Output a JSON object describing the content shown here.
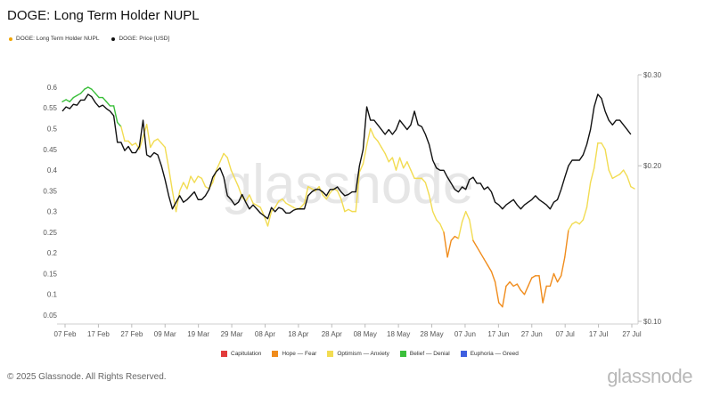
{
  "title": "DOGE: Long Term Holder NUPL",
  "legend_top": [
    {
      "label": "DOGE: Long Term Holder NUPL",
      "color": "#f0a500"
    },
    {
      "label": "DOGE: Price [USD]",
      "color": "#111111"
    }
  ],
  "legend_bottom": [
    {
      "label": "Capitulation",
      "color": "#e23b3b"
    },
    {
      "label": "Hope — Fear",
      "color": "#f08c1c"
    },
    {
      "label": "Optimism — Anxiety",
      "color": "#f2dc52"
    },
    {
      "label": "Belief — Denial",
      "color": "#3bbf3b"
    },
    {
      "label": "Euphoria — Greed",
      "color": "#3f5fe0"
    }
  ],
  "watermark": "glassnode",
  "footer": "© 2025 Glassnode. All Rights Reserved.",
  "brand": "glassnode",
  "chart_data": {
    "type": "line",
    "x_tick_labels": [
      "07 Feb",
      "17 Feb",
      "27 Feb",
      "09 Mar",
      "19 Mar",
      "29 Mar",
      "08 Apr",
      "18 Apr",
      "28 Apr",
      "08 May",
      "18 May",
      "28 May",
      "07 Jun",
      "17 Jun",
      "27 Jun",
      "07 Jul",
      "17 Jul",
      "27 Jul"
    ],
    "y_left_ticks": [
      "0.6",
      "0.55",
      "0.5",
      "0.45",
      "0.4",
      "0.35",
      "0.3",
      "0.25",
      "0.2",
      "0.15",
      "0.1",
      "0.05"
    ],
    "y_left_values": [
      0.6,
      0.55,
      0.5,
      0.45,
      0.4,
      0.35,
      0.3,
      0.25,
      0.2,
      0.15,
      0.1,
      0.05
    ],
    "ylim_left": [
      0.035,
      0.63
    ],
    "y_right_ticks": [
      "$0.30",
      "$0.20",
      "$0.10"
    ],
    "y_right_values": [
      0.3,
      0.2,
      0.1
    ],
    "ylim_right": [
      0.1,
      0.3
    ],
    "y_right_scale": "log",
    "nupl_zones": [
      {
        "name": "Capitulation",
        "max": 0,
        "color": "#e23b3b"
      },
      {
        "name": "Hope — Fear",
        "max": 0.25,
        "color": "#f08c1c"
      },
      {
        "name": "Optimism — Anxiety",
        "max": 0.5,
        "color": "#f2dc52"
      },
      {
        "name": "Belief — Denial",
        "max": 0.75,
        "color": "#3bbf3b"
      },
      {
        "name": "Euphoria — Greed",
        "max": 1,
        "color": "#3f5fe0"
      }
    ],
    "series": [
      {
        "name": "DOGE: Long Term Holder NUPL",
        "axis": "left",
        "values": [
          0.565,
          0.57,
          0.565,
          0.575,
          0.58,
          0.585,
          0.595,
          0.6,
          0.595,
          0.585,
          0.575,
          0.575,
          0.565,
          0.555,
          0.555,
          0.515,
          0.505,
          0.47,
          0.47,
          0.46,
          0.465,
          0.45,
          0.48,
          0.51,
          0.455,
          0.47,
          0.475,
          0.465,
          0.455,
          0.405,
          0.35,
          0.3,
          0.35,
          0.37,
          0.355,
          0.385,
          0.37,
          0.385,
          0.38,
          0.36,
          0.355,
          0.37,
          0.4,
          0.42,
          0.44,
          0.43,
          0.4,
          0.38,
          0.36,
          0.335,
          0.325,
          0.34,
          0.32,
          0.315,
          0.31,
          0.29,
          0.265,
          0.3,
          0.31,
          0.325,
          0.33,
          0.32,
          0.315,
          0.31,
          0.305,
          0.31,
          0.32,
          0.36,
          0.355,
          0.35,
          0.36,
          0.34,
          0.33,
          0.345,
          0.355,
          0.35,
          0.33,
          0.3,
          0.305,
          0.3,
          0.3,
          0.395,
          0.415,
          0.46,
          0.5,
          0.48,
          0.47,
          0.455,
          0.44,
          0.42,
          0.43,
          0.4,
          0.43,
          0.405,
          0.42,
          0.4,
          0.38,
          0.38,
          0.38,
          0.37,
          0.34,
          0.3,
          0.28,
          0.27,
          0.25,
          0.19,
          0.23,
          0.24,
          0.235,
          0.275,
          0.3,
          0.28,
          0.23,
          0.215,
          0.2,
          0.185,
          0.17,
          0.155,
          0.13,
          0.08,
          0.07,
          0.12,
          0.13,
          0.12,
          0.125,
          0.11,
          0.1,
          0.12,
          0.14,
          0.145,
          0.145,
          0.08,
          0.12,
          0.12,
          0.15,
          0.13,
          0.145,
          0.19,
          0.255,
          0.27,
          0.275,
          0.27,
          0.28,
          0.31,
          0.37,
          0.405,
          0.465,
          0.465,
          0.45,
          0.4,
          0.38,
          0.385,
          0.39,
          0.4,
          0.385,
          0.36,
          0.355
        ]
      },
      {
        "name": "DOGE: Price [USD]",
        "axis": "right",
        "values": [
          0.255,
          0.26,
          0.258,
          0.263,
          0.262,
          0.268,
          0.268,
          0.275,
          0.272,
          0.265,
          0.26,
          0.262,
          0.258,
          0.255,
          0.25,
          0.222,
          0.222,
          0.214,
          0.218,
          0.212,
          0.212,
          0.218,
          0.245,
          0.21,
          0.208,
          0.212,
          0.21,
          0.2,
          0.188,
          0.175,
          0.165,
          0.17,
          0.175,
          0.17,
          0.172,
          0.175,
          0.178,
          0.172,
          0.172,
          0.175,
          0.18,
          0.19,
          0.195,
          0.198,
          0.19,
          0.175,
          0.172,
          0.168,
          0.17,
          0.176,
          0.17,
          0.165,
          0.168,
          0.165,
          0.162,
          0.16,
          0.158,
          0.166,
          0.163,
          0.166,
          0.165,
          0.162,
          0.162,
          0.164,
          0.165,
          0.165,
          0.165,
          0.175,
          0.178,
          0.18,
          0.18,
          0.178,
          0.175,
          0.18,
          0.18,
          0.182,
          0.178,
          0.175,
          0.176,
          0.178,
          0.178,
          0.2,
          0.215,
          0.26,
          0.245,
          0.245,
          0.24,
          0.235,
          0.23,
          0.235,
          0.23,
          0.235,
          0.245,
          0.24,
          0.235,
          0.24,
          0.255,
          0.24,
          0.238,
          0.23,
          0.22,
          0.205,
          0.198,
          0.196,
          0.196,
          0.19,
          0.185,
          0.18,
          0.178,
          0.182,
          0.18,
          0.188,
          0.19,
          0.185,
          0.185,
          0.18,
          0.182,
          0.178,
          0.17,
          0.168,
          0.165,
          0.168,
          0.17,
          0.172,
          0.168,
          0.165,
          0.168,
          0.17,
          0.172,
          0.175,
          0.172,
          0.17,
          0.168,
          0.165,
          0.17,
          0.172,
          0.18,
          0.19,
          0.2,
          0.205,
          0.205,
          0.205,
          0.21,
          0.22,
          0.235,
          0.26,
          0.275,
          0.27,
          0.255,
          0.245,
          0.24,
          0.245,
          0.245,
          0.24,
          0.235,
          0.23
        ]
      }
    ],
    "grid": false,
    "legend_placement": "top-left"
  }
}
